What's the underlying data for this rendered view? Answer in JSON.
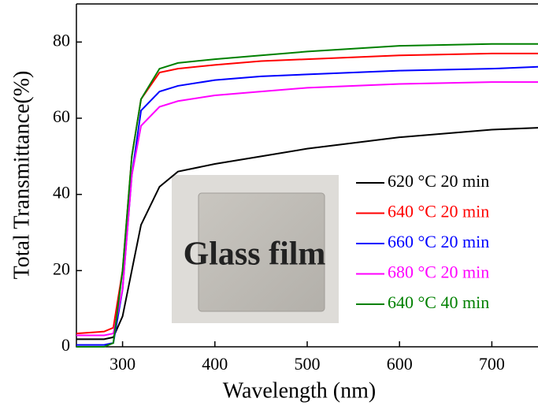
{
  "chart_data": {
    "type": "line",
    "x_label": "Wavelength (nm)",
    "y_label": "Total  Transmittance(%)",
    "x": [
      250,
      280,
      290,
      300,
      310,
      320,
      340,
      360,
      400,
      450,
      500,
      600,
      700,
      750
    ],
    "series": [
      {
        "name": "620 °C 20 min",
        "color": "#000000",
        "values": [
          2,
          2,
          2.5,
          8,
          20,
          32,
          42,
          46,
          48,
          50,
          52,
          55,
          57,
          57.5
        ]
      },
      {
        "name": "640 °C 20 min",
        "color": "#ff0000",
        "values": [
          3.5,
          4,
          5,
          20,
          50,
          65,
          72,
          73,
          74,
          75,
          75.5,
          76.5,
          77,
          77
        ]
      },
      {
        "name": "660 °C 20 min",
        "color": "#0000ff",
        "values": [
          0.5,
          0.5,
          1,
          15,
          45,
          62,
          67,
          68.5,
          70,
          71,
          71.5,
          72.5,
          73,
          73.5
        ]
      },
      {
        "name": "680 °C 20 min",
        "color": "#ff00ff",
        "values": [
          3,
          3,
          3.5,
          15,
          45,
          58,
          63,
          64.5,
          66,
          67,
          68,
          69,
          69.5,
          69.5
        ]
      },
      {
        "name": "640 °C 40 min",
        "color": "#008000",
        "values": [
          0,
          0,
          1,
          20,
          50,
          65,
          73,
          74.5,
          75.5,
          76.5,
          77.5,
          79,
          79.5,
          79.5
        ]
      }
    ],
    "xlim": [
      250,
      750
    ],
    "ylim": [
      0,
      90
    ],
    "xticks": [
      300,
      400,
      500,
      600,
      700
    ],
    "yticks": [
      0,
      20,
      40,
      60,
      80
    ],
    "legend": "right",
    "inset_text": "Glass film"
  }
}
